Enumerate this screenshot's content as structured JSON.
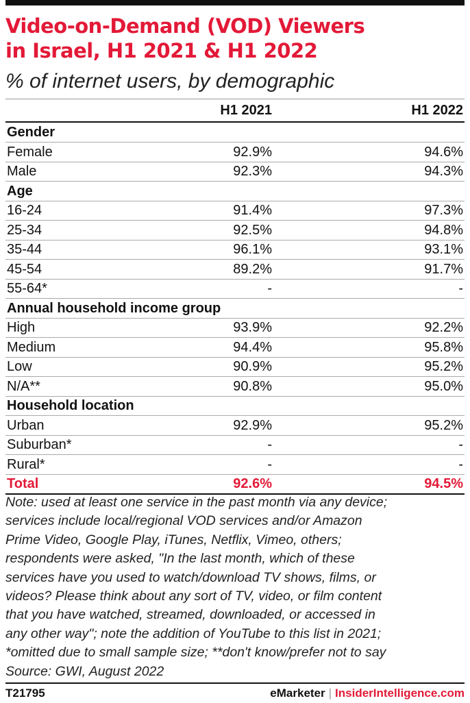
{
  "header": {
    "title_lines": [
      "Video-on-Demand (VOD) Viewers",
      "in Israel, H1 2021 & H1 2022"
    ],
    "subtitle": "% of internet users, by demographic"
  },
  "chart_data": {
    "type": "table",
    "columns": [
      "H1 2021",
      "H1 2022"
    ],
    "rows": [
      {
        "kind": "category",
        "label": "Gender"
      },
      {
        "kind": "data",
        "label": "Female",
        "values": [
          "92.9%",
          "94.6%"
        ]
      },
      {
        "kind": "data",
        "label": "Male",
        "values": [
          "92.3%",
          "94.3%"
        ]
      },
      {
        "kind": "category",
        "label": "Age"
      },
      {
        "kind": "data",
        "label": "16-24",
        "values": [
          "91.4%",
          "97.3%"
        ]
      },
      {
        "kind": "data",
        "label": "25-34",
        "values": [
          "92.5%",
          "94.8%"
        ]
      },
      {
        "kind": "data",
        "label": "35-44",
        "values": [
          "96.1%",
          "93.1%"
        ]
      },
      {
        "kind": "data",
        "label": "45-54",
        "values": [
          "89.2%",
          "91.7%"
        ]
      },
      {
        "kind": "data",
        "label": "55-64*",
        "values": [
          "-",
          "-"
        ]
      },
      {
        "kind": "category",
        "label": "Annual household income group"
      },
      {
        "kind": "data",
        "label": "High",
        "values": [
          "93.9%",
          "92.2%"
        ]
      },
      {
        "kind": "data",
        "label": "Medium",
        "values": [
          "94.4%",
          "95.8%"
        ]
      },
      {
        "kind": "data",
        "label": "Low",
        "values": [
          "90.9%",
          "95.2%"
        ]
      },
      {
        "kind": "data",
        "label": "N/A**",
        "values": [
          "90.8%",
          "95.0%"
        ]
      },
      {
        "kind": "category",
        "label": "Household location"
      },
      {
        "kind": "data",
        "label": "Urban",
        "values": [
          "92.9%",
          "95.2%"
        ]
      },
      {
        "kind": "data",
        "label": "Suburban*",
        "values": [
          "-",
          "-"
        ]
      },
      {
        "kind": "data",
        "label": "Rural*",
        "values": [
          "-",
          "-"
        ]
      },
      {
        "kind": "total",
        "label": "Total",
        "values": [
          "92.6%",
          "94.5%"
        ]
      }
    ]
  },
  "note_lines": [
    "Note: used at least one service in the past month via any device;",
    "services include local/regional VOD services and/or Amazon",
    "Prime Video, Google Play, iTunes, Netflix, Vimeo, others;",
    "respondents were asked, \"In the last month, which of these",
    "services have you used to watch/download TV shows, films, or",
    "videos? Please think about any sort of TV, video, or film content",
    "that you have watched, streamed, downloaded, or accessed in",
    "any other way\"; note the addition of YouTube to this list in 2021;",
    "*omitted due to small sample size; **don't know/prefer not to say",
    "Source: GWI, August 2022"
  ],
  "footer": {
    "chart_id": "T21795",
    "brand1": "eMarketer",
    "separator": "|",
    "brand2": "InsiderIntelligence.com"
  },
  "colors": {
    "accent": "#e31937",
    "text": "#111111"
  }
}
